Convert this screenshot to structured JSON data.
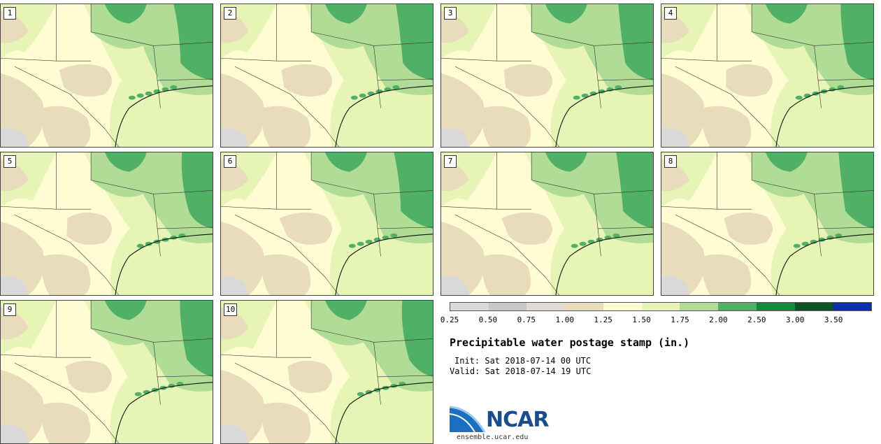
{
  "panels": [
    "1",
    "2",
    "3",
    "4",
    "5",
    "6",
    "7",
    "8",
    "9",
    "10"
  ],
  "legend": {
    "colors": [
      "#d9d9d9",
      "#c8c8c8",
      "#e0dcd3",
      "#e8dcbc",
      "#fffbd2",
      "#e6f5b6",
      "#b0dc95",
      "#4fb066",
      "#128a3e",
      "#0b5428",
      "#0b2fb0"
    ],
    "labels": [
      "0.25",
      "0.50",
      "0.75",
      "1.00",
      "1.25",
      "1.50",
      "1.75",
      "2.00",
      "2.50",
      "3.00",
      "3.50"
    ]
  },
  "title": "Precipitable water postage stamp (in.)",
  "init": "Init: Sat 2018-07-14 00 UTC",
  "valid": "Valid: Sat 2018-07-14 19 UTC",
  "logo": {
    "text": "NCAR",
    "url": "ensemble.ucar.edu"
  }
}
